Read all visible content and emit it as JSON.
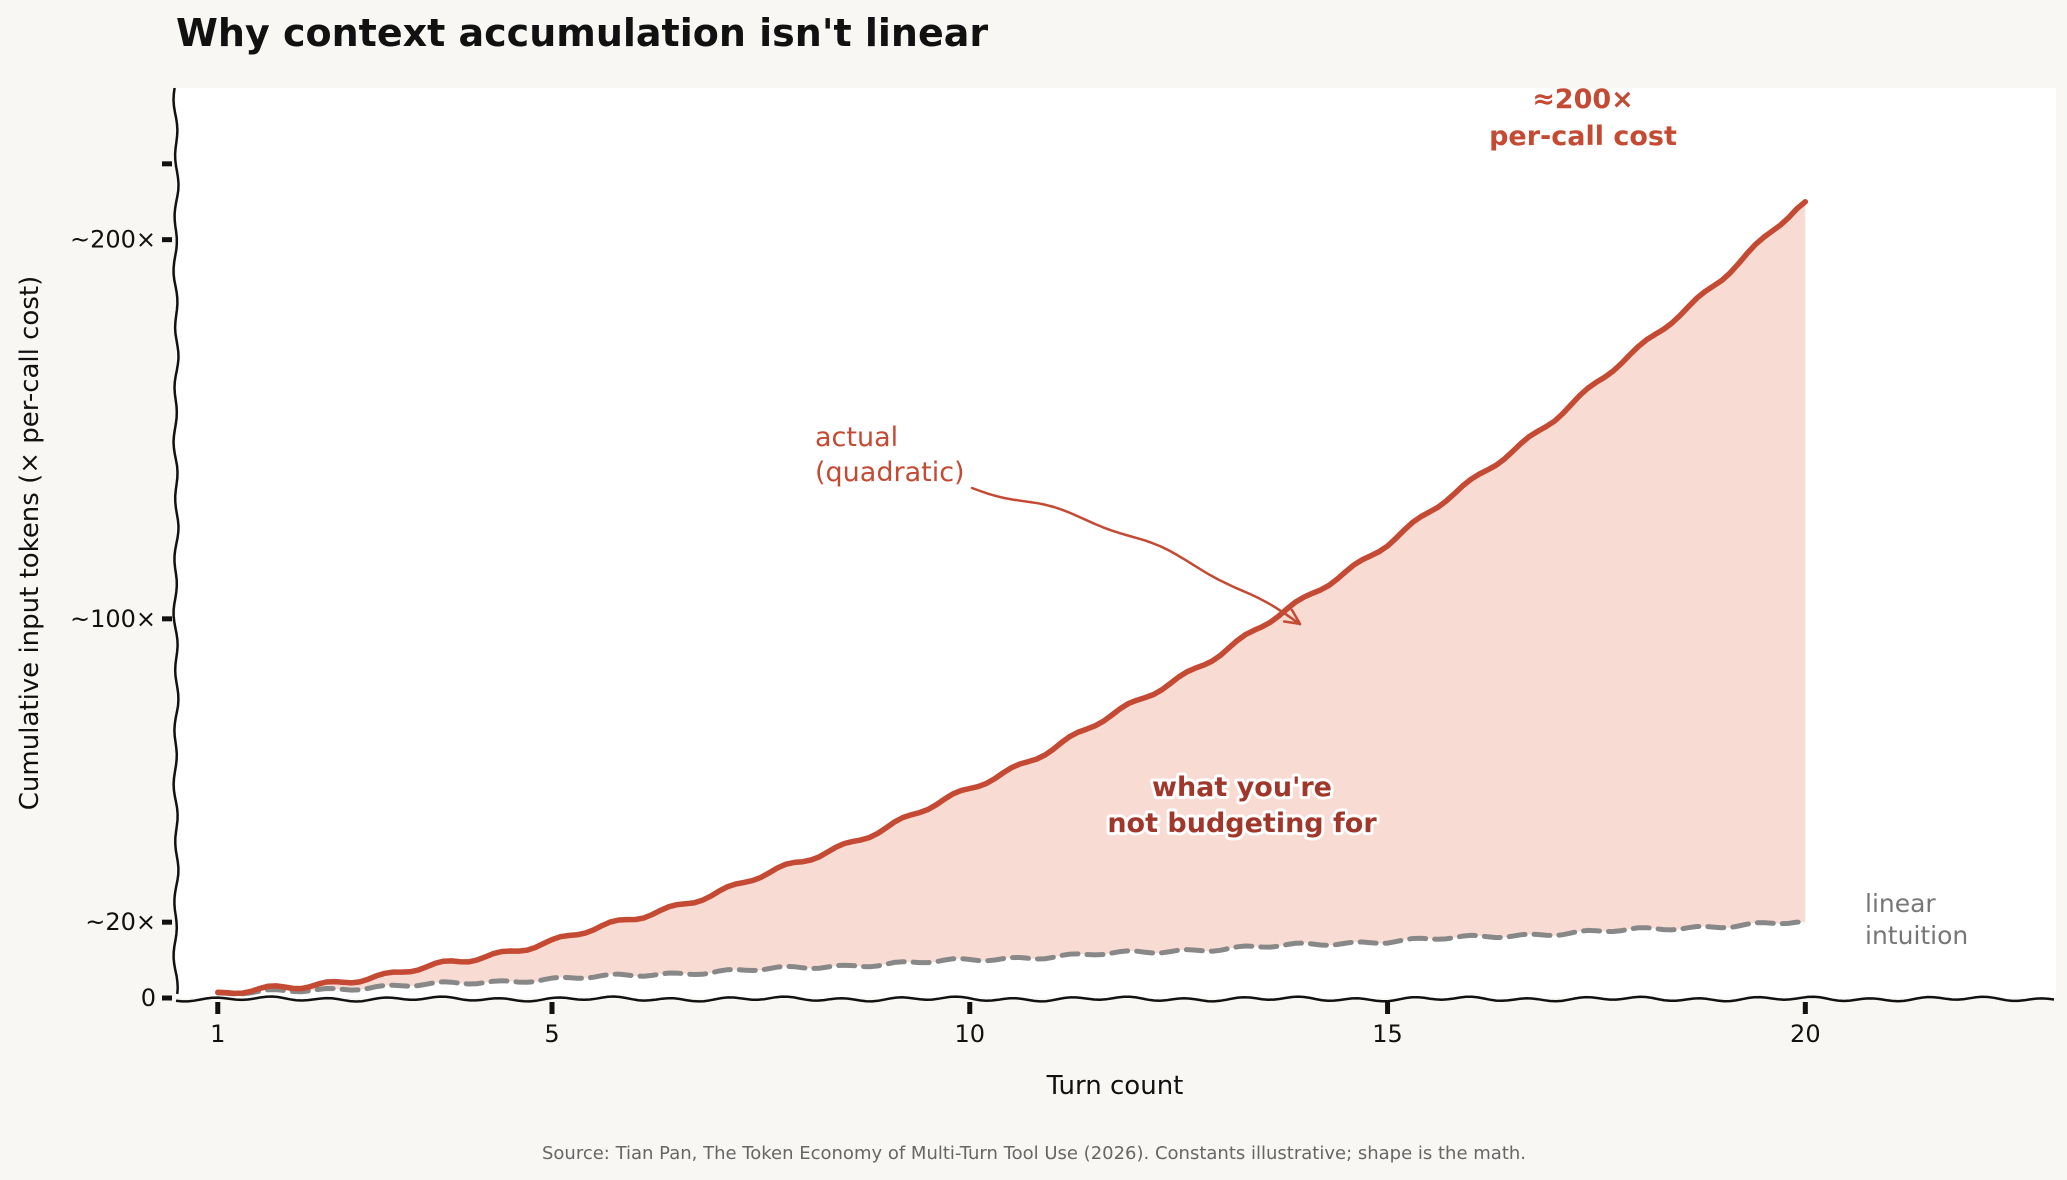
{
  "chart_data": {
    "type": "line",
    "title": "Why context accumulation isn't linear",
    "xlabel": "Turn count",
    "ylabel": "Cumulative input tokens (× per-call cost)",
    "x": [
      1,
      2,
      3,
      4,
      5,
      6,
      7,
      8,
      9,
      10,
      11,
      12,
      13,
      14,
      15,
      16,
      17,
      18,
      19,
      20
    ],
    "series": [
      {
        "name": "actual (quadratic)",
        "color": "#c44a33",
        "style": "solid",
        "values": [
          1,
          3,
          6,
          10,
          15,
          21,
          28,
          36,
          45,
          55,
          66,
          78,
          91,
          105,
          120,
          136,
          153,
          171,
          190,
          210
        ]
      },
      {
        "name": "linear intuition",
        "color": "#888888",
        "style": "dashed",
        "values": [
          1,
          2,
          3,
          4,
          5,
          6,
          7,
          8,
          9,
          10,
          11,
          12,
          13,
          14,
          15,
          16,
          17,
          18,
          19,
          20
        ]
      }
    ],
    "fill_between": {
      "color": "#f2b9a8",
      "label": "what you're not budgeting for"
    },
    "xticks": [
      1,
      5,
      10,
      15,
      20
    ],
    "xlim": [
      0.5,
      23
    ],
    "ytick_values": [
      0,
      20,
      100,
      200
    ],
    "ytick_labels": [
      "0",
      "~20×",
      "~100×",
      "~200×"
    ],
    "ylim": [
      0,
      240
    ],
    "grid": false,
    "annotations": {
      "actual": {
        "line1": "actual",
        "line2": "(quadratic)",
        "target": [
          14,
          105
        ]
      },
      "gap": {
        "line1": "what you're",
        "line2": "not budgeting for"
      },
      "linear": {
        "line1": "linear",
        "line2": "intuition"
      },
      "peak": {
        "line1": "≈200×",
        "line2": "per-call cost"
      }
    },
    "source": "Source: Tian Pan, The Token Economy of Multi-Turn Tool Use (2026). Constants illustrative; shape is the math."
  }
}
